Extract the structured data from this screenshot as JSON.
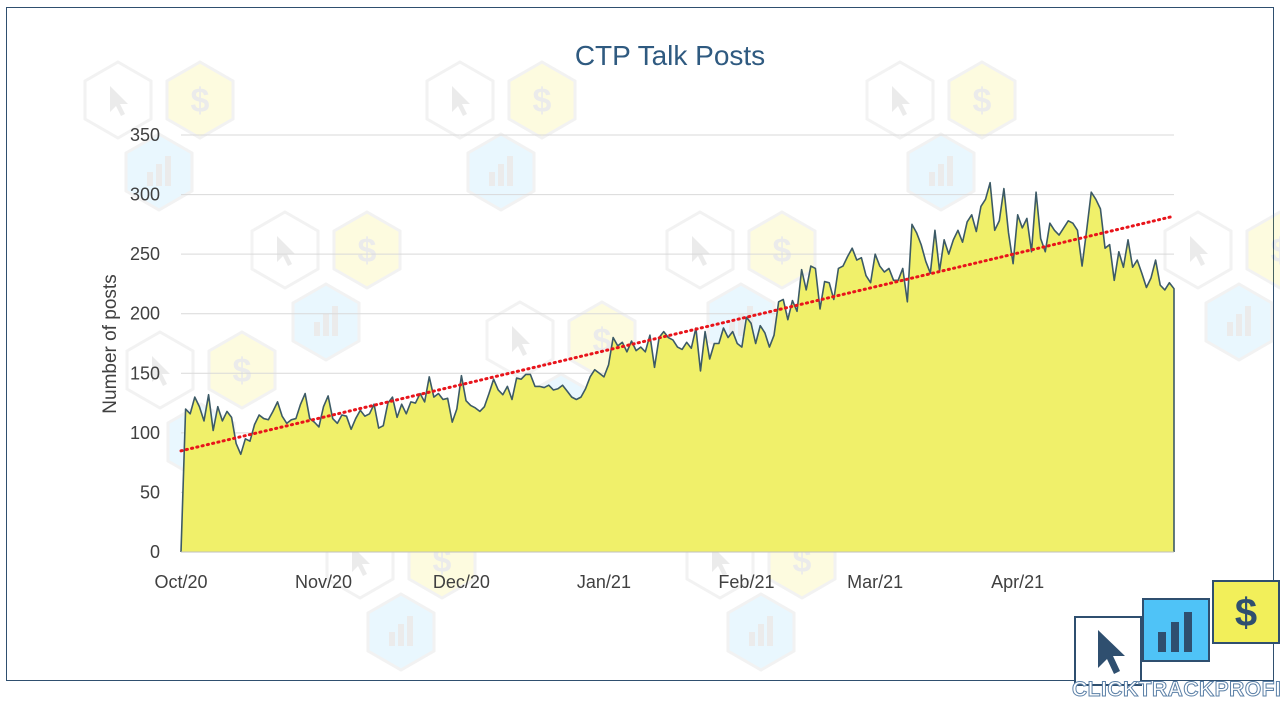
{
  "chart_data": {
    "type": "area",
    "title": "CTP Talk Posts",
    "ylabel": "Number of posts",
    "xlabel": "",
    "ylim": [
      0,
      350
    ],
    "yticks": [
      0,
      50,
      100,
      150,
      200,
      250,
      300,
      350
    ],
    "grid": true,
    "start_date": "2020-10-01",
    "xticks": [
      {
        "label": "Oct/20",
        "day": 0
      },
      {
        "label": "Nov/20",
        "day": 31
      },
      {
        "label": "Dec/20",
        "day": 61
      },
      {
        "label": "Jan/21",
        "day": 92
      },
      {
        "label": "Feb/21",
        "day": 123
      },
      {
        "label": "Mar/21",
        "day": 151
      },
      {
        "label": "Apr/21",
        "day": 182
      }
    ],
    "series": [
      {
        "name": "",
        "fill": "#f0f06a",
        "stroke": "#3c5a66",
        "values": [
          0,
          120,
          116,
          130,
          122,
          110,
          132,
          102,
          122,
          110,
          118,
          113,
          91,
          82,
          95,
          93,
          107,
          115,
          112,
          111,
          118,
          126,
          114,
          108,
          111,
          112,
          124,
          133,
          112,
          109,
          105,
          122,
          131,
          112,
          108,
          115,
          114,
          103,
          112,
          119,
          114,
          116,
          124,
          104,
          106,
          125,
          130,
          113,
          124,
          116,
          126,
          125,
          133,
          126,
          147,
          130,
          133,
          128,
          129,
          109,
          120,
          148,
          127,
          123,
          121,
          118,
          122,
          133,
          145,
          136,
          132,
          139,
          128,
          146,
          145,
          149,
          149,
          139,
          139,
          138,
          140,
          136,
          137,
          140,
          135,
          130,
          128,
          130,
          137,
          147,
          153,
          150,
          147,
          157,
          180,
          173,
          176,
          168,
          177,
          169,
          172,
          168,
          182,
          155,
          180,
          185,
          180,
          178,
          172,
          170,
          176,
          171,
          188,
          152,
          185,
          162,
          175,
          175,
          188,
          180,
          185,
          175,
          172,
          197,
          192,
          175,
          190,
          184,
          172,
          182,
          210,
          212,
          195,
          211,
          202,
          237,
          220,
          240,
          238,
          204,
          227,
          226,
          212,
          238,
          240,
          248,
          255,
          245,
          247,
          232,
          226,
          250,
          240,
          235,
          238,
          228,
          228,
          238,
          210,
          275,
          268,
          258,
          244,
          234,
          270,
          236,
          262,
          250,
          262,
          270,
          260,
          277,
          283,
          269,
          290,
          296,
          310,
          270,
          278,
          305,
          268,
          242,
          283,
          272,
          280,
          252,
          302,
          263,
          252,
          276,
          270,
          266,
          272,
          278,
          276,
          270,
          240,
          270,
          302,
          296,
          288,
          255,
          258,
          228,
          252,
          239,
          262,
          239,
          245,
          234,
          222,
          230,
          245,
          224,
          220,
          226,
          221
        ]
      }
    ],
    "trendline": {
      "type": "linear",
      "style": "dotted",
      "color": "#e8141b"
    }
  },
  "logo": {
    "text": "CLICKTRACKPROFIT",
    "icons": [
      "cursor-icon",
      "bar-chart-icon",
      "dollar-icon"
    ],
    "colors": {
      "cursor_box": "#ffffff",
      "bar_box": "#4fc3f7",
      "dollar_box": "#f2ef5a",
      "outline": "#2f4f6f"
    }
  },
  "watermark": {
    "icons": [
      "cursor-icon",
      "dollar-icon",
      "bar-chart-icon"
    ]
  }
}
